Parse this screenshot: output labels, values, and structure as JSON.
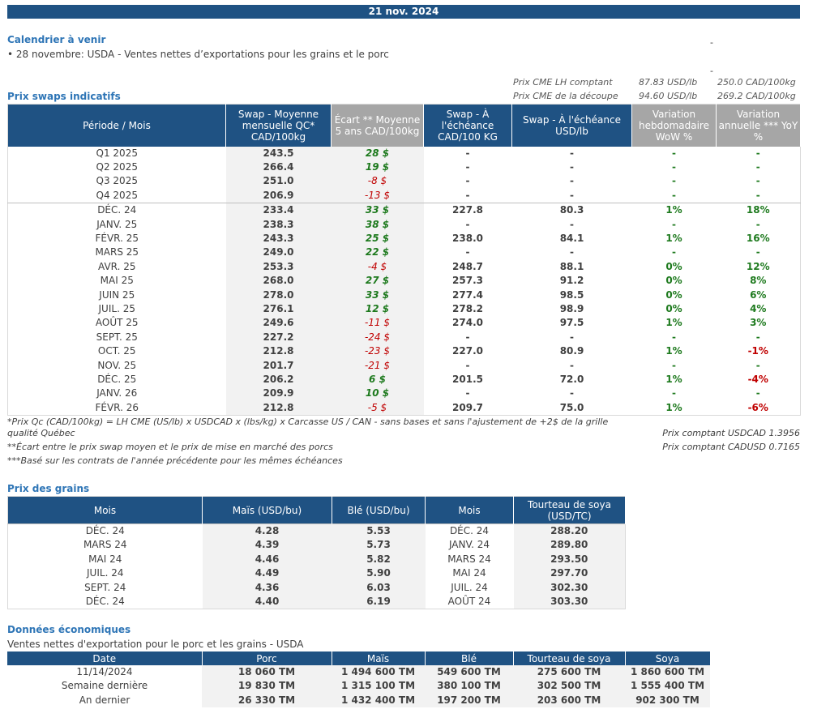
{
  "date": "21 nov. 2024",
  "calendar": {
    "title": "Calendrier à venir",
    "item": "• 28 novembre: USDA - Ventes nettes d’exportations pour les grains et le porc"
  },
  "cme": {
    "lh_label": "Prix CME LH comptant",
    "lh_usd": "87.83 USD/lb",
    "lh_cad": "250.0 CAD/100kg",
    "cut_label": "Prix CME de la découpe",
    "cut_usd": "94.60 USD/lb",
    "cut_cad": "269.2 CAD/100kg",
    "dash": "-"
  },
  "swaps": {
    "title": "Prix swaps indicatifs",
    "headers": [
      "Période / Mois",
      "Swap - Moyenne mensuelle QC* CAD/100kg",
      "Écart ** Moyenne 5 ans CAD/100kg",
      "Swap - À l'échéance CAD/100 KG",
      "Swap - À l'échéance USD/lb",
      "Variation hebdomadaire WoW %",
      "Variation annuelle *** YoY %"
    ],
    "rows": [
      [
        "Q1 2025",
        "243.5",
        "28 $",
        "-",
        "-",
        "-",
        "-"
      ],
      [
        "Q2 2025",
        "266.4",
        "19 $",
        "-",
        "-",
        "-",
        "-"
      ],
      [
        "Q3 2025",
        "251.0",
        "-8 $",
        "-",
        "-",
        "-",
        "-"
      ],
      [
        "Q4 2025",
        "206.9",
        "-13 $",
        "-",
        "-",
        "-",
        "-"
      ],
      [
        "DÉC. 24",
        "233.4",
        "33 $",
        "227.8",
        "80.3",
        "1%",
        "18%"
      ],
      [
        "JANV. 25",
        "238.3",
        "38 $",
        "-",
        "-",
        "-",
        "-"
      ],
      [
        "FÉVR. 25",
        "243.3",
        "25 $",
        "238.0",
        "84.1",
        "1%",
        "16%"
      ],
      [
        "MARS 25",
        "249.0",
        "22 $",
        "-",
        "-",
        "-",
        "-"
      ],
      [
        "AVR. 25",
        "253.3",
        "-4 $",
        "248.7",
        "88.1",
        "0%",
        "12%"
      ],
      [
        "MAI 25",
        "268.0",
        "27 $",
        "257.3",
        "91.2",
        "0%",
        "8%"
      ],
      [
        "JUIN 25",
        "278.0",
        "33 $",
        "277.4",
        "98.5",
        "0%",
        "6%"
      ],
      [
        "JUIL. 25",
        "276.1",
        "12 $",
        "278.2",
        "98.9",
        "0%",
        "4%"
      ],
      [
        "AOÛT 25",
        "249.6",
        "-11 $",
        "274.0",
        "97.5",
        "1%",
        "3%"
      ],
      [
        "SEPT. 25",
        "227.2",
        "-24 $",
        "-",
        "-",
        "-",
        "-"
      ],
      [
        "OCT. 25",
        "212.8",
        "-23 $",
        "227.0",
        "80.9",
        "1%",
        "-1%"
      ],
      [
        "NOV. 25",
        "201.7",
        "-21 $",
        "-",
        "-",
        "-",
        "-"
      ],
      [
        "DÉC. 25",
        "206.2",
        "6 $",
        "201.5",
        "72.0",
        "1%",
        "-4%"
      ],
      [
        "JANV. 26",
        "209.9",
        "10 $",
        "-",
        "-",
        "-",
        "-"
      ],
      [
        "FÉVR. 26",
        "212.8",
        "-5 $",
        "209.7",
        "75.0",
        "1%",
        "-6%"
      ]
    ],
    "note1": "*Prix Qc (CAD/100kg) = LH CME (US/lb) x USDCAD x (lbs/kg) x Carcasse US / CAN - sans bases et sans l'ajustement de +2$ de la grille",
    "note1b": "qualité Québec",
    "note2": "**Écart entre le prix swap moyen et le prix de mise en marché des porcs",
    "note3": "***Basé sur les contrats de l'année précédente pour les mêmes échéances",
    "usdcad": "Prix comptant USDCAD 1.3956",
    "cadusd": "Prix comptant CADUSD 0.7165"
  },
  "grains": {
    "title": "Prix des grains",
    "headers": [
      "Mois",
      "Maïs (USD/bu)",
      "Blé (USD/bu)",
      "Mois",
      "Tourteau de soya (USD/TC)"
    ],
    "rows": [
      [
        "DÉC. 24",
        "4.28",
        "5.53",
        "DÉC. 24",
        "288.20"
      ],
      [
        "MARS 24",
        "4.39",
        "5.73",
        "JANV. 24",
        "289.80"
      ],
      [
        "MAI 24",
        "4.46",
        "5.82",
        "MARS 24",
        "293.50"
      ],
      [
        "JUIL. 24",
        "4.49",
        "5.90",
        "MAI 24",
        "297.70"
      ],
      [
        "SEPT. 24",
        "4.36",
        "6.03",
        "JUIL. 24",
        "302.30"
      ],
      [
        "DÉC. 24",
        "4.40",
        "6.19",
        "AOÛT 24",
        "303.30"
      ]
    ]
  },
  "econ": {
    "title": "Données économiques",
    "subtitle": "Ventes nettes d'exportation pour le porc et les grains - USDA",
    "headers": [
      "Date",
      "Porc",
      "Maïs",
      "Blé",
      "Tourteau de soya",
      "Soya"
    ],
    "rows": [
      [
        "11/14/2024",
        "18 060 TM",
        "1 494 600 TM",
        "549 600 TM",
        "275 600 TM",
        "1 860 600 TM"
      ],
      [
        "Semaine dernière",
        "19 830 TM",
        "1 315 100 TM",
        "380 100 TM",
        "302 500 TM",
        "1 555 400 TM"
      ],
      [
        "An dernier",
        "26 330 TM",
        "1 432 400 TM",
        "197 200 TM",
        "203 600 TM",
        "902 300 TM"
      ]
    ]
  }
}
